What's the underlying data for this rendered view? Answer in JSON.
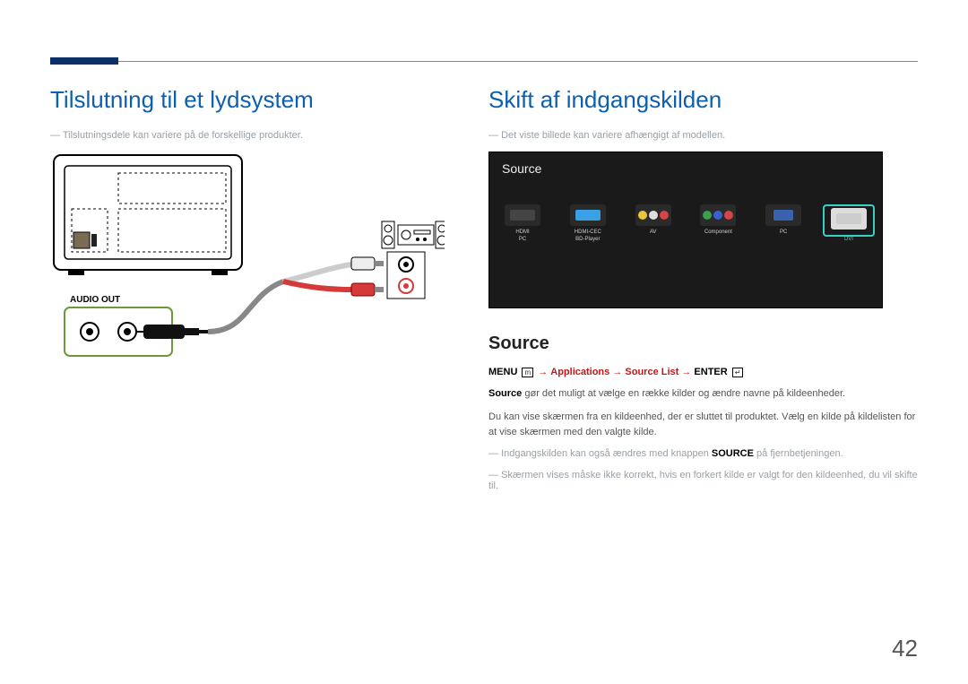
{
  "page_number": "42",
  "accent_color": "#0b2f66",
  "heading_color": "#0b60b0",
  "left": {
    "heading": "Tilslutning til et lydsystem",
    "note": "Tilslutningsdele kan variere på de forskellige produkter.",
    "port_label": "AUDIO OUT"
  },
  "right": {
    "heading": "Skift af indgangskilden",
    "note": "Det viste billede kan variere afhængigt af modellen.",
    "screen": {
      "title": "Source",
      "background": "#1a1a1a",
      "highlight_color": "#39d0c3",
      "items": [
        {
          "label": "HDMI\nPC",
          "kind": "hdmi"
        },
        {
          "label": "HDMI-CEC\nBD-Player",
          "kind": "cec"
        },
        {
          "label": "AV",
          "kind": "av"
        },
        {
          "label": "Component",
          "kind": "component"
        },
        {
          "label": "PC",
          "kind": "pc"
        },
        {
          "label": "DVI",
          "kind": "dvi",
          "selected": true
        }
      ]
    },
    "section_heading": "Source",
    "menupath": {
      "menu": "MENU",
      "menu_icon": "m",
      "arrow": "→",
      "applications": "Applications",
      "source_list": "Source List",
      "enter": "ENTER",
      "enter_icon": "↵"
    },
    "paragraphs": [
      {
        "bold_prefix": "Source",
        "text": " gør det muligt at vælge en række kilder og ændre navne på kildeenheder."
      },
      {
        "text": "Du kan vise skærmen fra en kildeenhed, der er sluttet til produktet. Vælg en kilde på kildelisten for at vise skærmen med den valgte kilde."
      }
    ],
    "dash_notes": [
      {
        "pre": "Indgangskilden kan også ændres med knappen ",
        "bold": "SOURCE",
        "post": " på fjernbetjeningen."
      },
      {
        "pre": "Skærmen vises måske ikke korrekt, hvis en forkert kilde er valgt for den kildeenhed, du vil skifte til.",
        "bold": "",
        "post": ""
      }
    ]
  }
}
